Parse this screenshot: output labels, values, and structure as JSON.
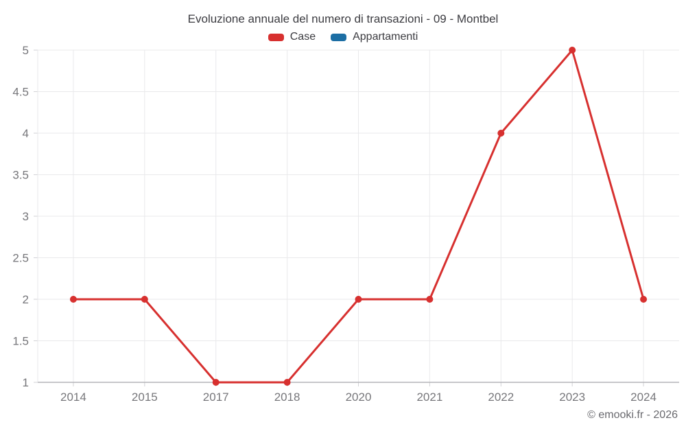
{
  "title": "Evoluzione annuale del numero di transazioni - 09 - Montbel",
  "legend": {
    "items": [
      {
        "label": "Case",
        "color": "#d7302f"
      },
      {
        "label": "Appartamenti",
        "color": "#1c6ea4"
      }
    ]
  },
  "footer": {
    "credit": "© emooki.fr - 2026"
  },
  "chart_data": {
    "type": "line",
    "title": "Evoluzione annuale del numero di transazioni - 09 - Montbel",
    "categories": [
      "2014",
      "2015",
      "2017",
      "2018",
      "2020",
      "2021",
      "2022",
      "2023",
      "2024"
    ],
    "series": [
      {
        "name": "Case",
        "color": "#d7302f",
        "values": [
          2,
          2,
          1,
          1,
          2,
          2,
          4,
          5,
          2
        ]
      },
      {
        "name": "Appartamenti",
        "color": "#1c6ea4",
        "values": []
      }
    ],
    "xlabel": "",
    "ylabel": "",
    "ylim": [
      1,
      5
    ],
    "ytick_step": 0.5,
    "ytick_labels": [
      "1",
      "1.5",
      "2",
      "2.5",
      "3",
      "3.5",
      "4",
      "4.5",
      "5"
    ],
    "grid": true,
    "legend_position": "top",
    "point_radius": 5,
    "line_width": 3,
    "colors": {
      "grid_line": "#e9e9eb",
      "axis_line": "#b4b4b8",
      "tick_mark": "#d2d2d6",
      "tick_label": "#76767a",
      "title_text": "#3b3b40",
      "footer_text": "#68686d"
    }
  }
}
